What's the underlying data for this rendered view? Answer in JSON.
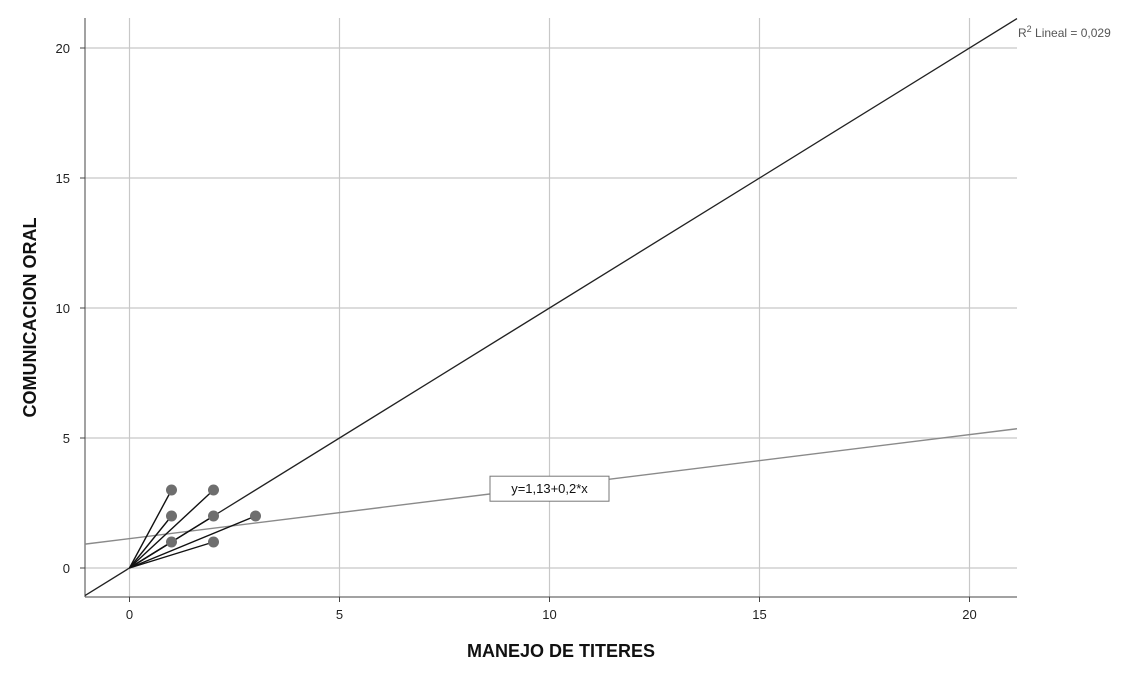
{
  "chart_data": {
    "type": "scatter",
    "title": "",
    "xlabel": "MANEJO DE TITERES",
    "ylabel": "COMUNICACION ORAL",
    "xlim": [
      -1.1,
      21.1
    ],
    "ylim": [
      -1.1,
      21.1
    ],
    "xticks": [
      0,
      5,
      10,
      15,
      20
    ],
    "yticks": [
      0,
      5,
      10,
      15,
      20
    ],
    "x_tick_labels": [
      "0",
      "5",
      "10",
      "15",
      "20"
    ],
    "y_tick_labels": [
      "0",
      "5",
      "10",
      "15",
      "20"
    ],
    "grid": true,
    "legend": "none",
    "series": [
      {
        "points": [
          {
            "x": 1,
            "y": 3
          },
          {
            "x": 2,
            "y": 3
          },
          {
            "x": 1,
            "y": 2
          },
          {
            "x": 2,
            "y": 2
          },
          {
            "x": 3,
            "y": 2
          },
          {
            "x": 1,
            "y": 1
          },
          {
            "x": 2,
            "y": 1
          }
        ]
      }
    ],
    "reference_line": {
      "intercept": 0,
      "slope": 1
    },
    "fit_line": {
      "intercept": 1.13,
      "slope": 0.2
    },
    "fit_label": "y=1,13+0,2*x",
    "fit_label_position": {
      "x": 10,
      "y": 3.05
    },
    "r2_label": {
      "prefix": "R",
      "superscript": "2",
      "text": " Lineal = 0,029"
    },
    "colors": {
      "points": "#6e6e6e",
      "grid": "#c8c8c8",
      "axis": "#444444",
      "reference_line": "#222222",
      "fit_line": "#8a8a8a",
      "spike_lines": "#111111"
    }
  }
}
